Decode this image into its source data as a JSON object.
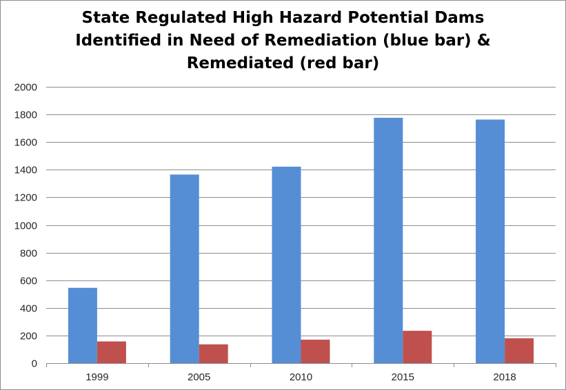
{
  "chart_data": {
    "type": "bar",
    "title_lines": [
      "State Regulated High Hazard Potential Dams",
      "Identified in Need of Remediation (blue bar) &",
      "Remediated (red bar)"
    ],
    "categories": [
      "1999",
      "2005",
      "2010",
      "2015",
      "2018"
    ],
    "series": [
      {
        "values": [
          545,
          1365,
          1422,
          1776,
          1763
        ],
        "color": "#558ed5"
      },
      {
        "values": [
          157,
          136,
          170,
          234,
          180
        ],
        "color": "#c0504d"
      }
    ],
    "ylim": [
      0,
      2000
    ],
    "yticks": [
      0,
      200,
      400,
      600,
      800,
      1000,
      1200,
      1400,
      1600,
      1800,
      2000
    ],
    "grid": true,
    "gridline_color": "#8c8c8c"
  }
}
